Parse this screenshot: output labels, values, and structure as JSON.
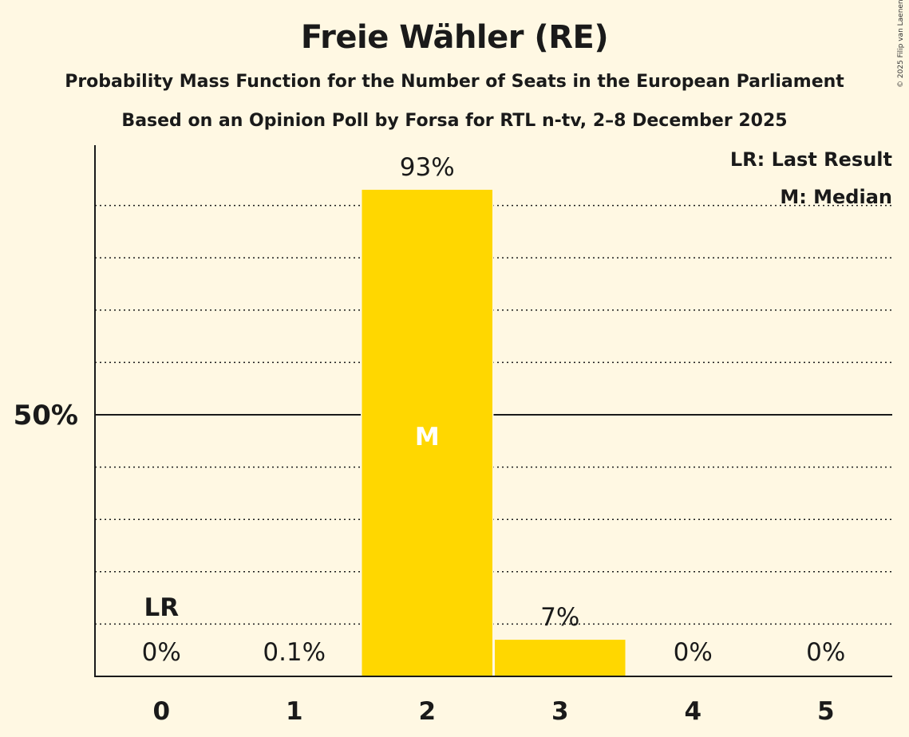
{
  "header": {
    "title": "Freie Wähler (RE)",
    "subtitle": "Probability Mass Function for the Number of Seats in the European Parliament",
    "source": "Based on an Opinion Poll by Forsa for RTL n-tv, 2–8 December 2025",
    "copyright": "© 2025 Filip van Laenen"
  },
  "legend": {
    "lr": "LR: Last Result",
    "m": "M: Median"
  },
  "colors": {
    "background": "#fff8e3",
    "bar": "#ffd700",
    "text": "#1a1a1a"
  },
  "chart_data": {
    "type": "bar",
    "title": "Freie Wähler (RE)",
    "subtitle": "Probability Mass Function for the Number of Seats in the European Parliament",
    "xlabel": "",
    "ylabel": "",
    "categories": [
      "0",
      "1",
      "2",
      "3",
      "4",
      "5"
    ],
    "values": [
      0,
      0.1,
      93,
      7,
      0,
      0
    ],
    "value_labels": [
      "0%",
      "0.1%",
      "93%",
      "7%",
      "0%",
      "0%"
    ],
    "ylim": [
      0,
      100
    ],
    "yticks_labeled": [
      {
        "value": 50,
        "label": "50%"
      }
    ],
    "grid": "dotted every 10%, solid at 50%",
    "annotations": [
      {
        "category": "0",
        "text": "LR",
        "meaning": "Last Result"
      },
      {
        "category": "2",
        "text": "M",
        "meaning": "Median"
      }
    ],
    "legend_position": "top-right"
  }
}
